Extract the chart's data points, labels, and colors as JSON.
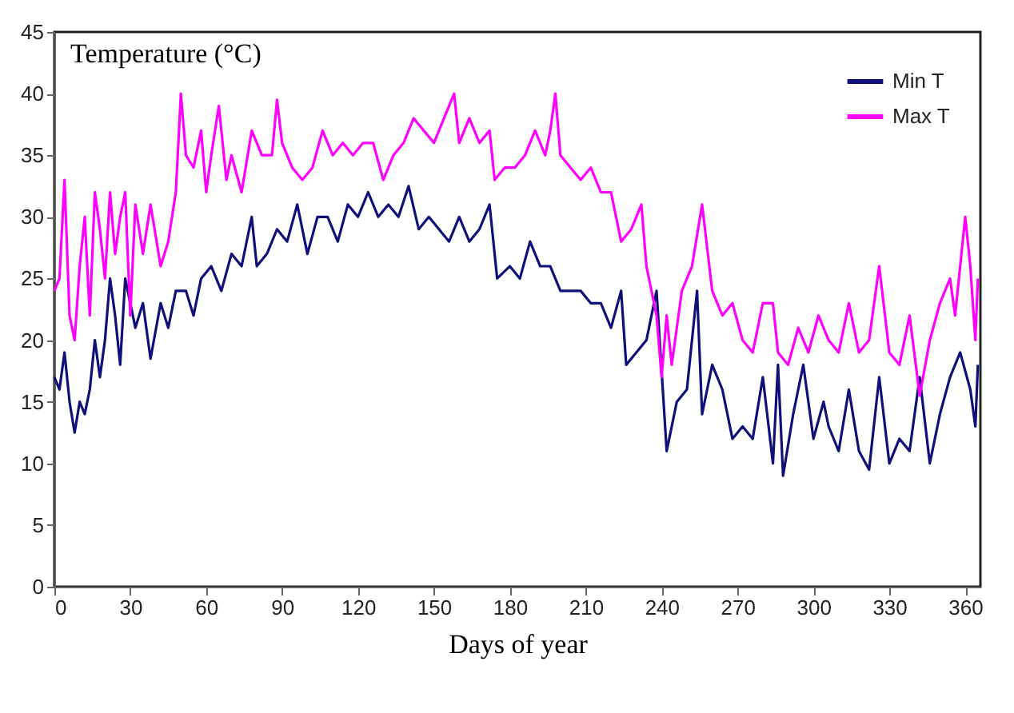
{
  "chart_data": {
    "type": "line",
    "xlabel": "Days of year",
    "ylabel": "Temperature (°C)",
    "xlim": [
      0,
      366
    ],
    "xticks": [
      0,
      30,
      60,
      90,
      120,
      150,
      180,
      210,
      240,
      270,
      300,
      330,
      360
    ],
    "ylim": [
      0,
      45
    ],
    "yticks": [
      0,
      5,
      10,
      15,
      20,
      25,
      30,
      35,
      40,
      45
    ],
    "grid": false,
    "legend": "top right",
    "line_style": "solid",
    "series": [
      {
        "name": "Min T",
        "color": "#10107a",
        "x": [
          0,
          2,
          4,
          6,
          8,
          10,
          12,
          14,
          16,
          18,
          20,
          22,
          24,
          26,
          28,
          32,
          35,
          38,
          42,
          45,
          48,
          52,
          55,
          58,
          62,
          66,
          70,
          74,
          78,
          80,
          84,
          88,
          92,
          96,
          100,
          104,
          108,
          112,
          116,
          120,
          124,
          128,
          132,
          136,
          140,
          144,
          148,
          152,
          156,
          160,
          164,
          168,
          172,
          175,
          180,
          184,
          188,
          192,
          196,
          200,
          204,
          208,
          212,
          216,
          220,
          224,
          226,
          230,
          234,
          238,
          242,
          246,
          250,
          254,
          256,
          260,
          264,
          268,
          272,
          276,
          280,
          284,
          286,
          288,
          292,
          296,
          300,
          304,
          306,
          310,
          314,
          318,
          322,
          326,
          330,
          334,
          338,
          342,
          346,
          350,
          354,
          358,
          362,
          364,
          365
        ],
        "values": [
          17,
          16,
          19,
          15,
          12.5,
          15,
          14,
          16,
          20,
          17,
          20,
          25,
          22,
          18,
          25,
          21,
          23,
          18.5,
          23,
          21,
          24,
          24,
          22,
          25,
          26,
          24,
          27,
          26,
          30,
          26,
          27,
          29,
          28,
          31,
          27,
          30,
          30,
          28,
          31,
          30,
          32,
          30,
          31,
          30,
          32.5,
          29,
          30,
          29,
          28,
          30,
          28,
          29,
          31,
          25,
          26,
          25,
          28,
          26,
          26,
          24,
          24,
          24,
          23,
          23,
          21,
          24,
          18,
          19,
          20,
          24,
          11,
          15,
          16,
          24,
          14,
          18,
          16,
          12,
          13,
          12,
          17,
          10,
          18,
          9,
          14,
          18,
          12,
          15,
          13,
          11,
          16,
          11,
          9.5,
          17,
          10,
          12,
          11,
          17,
          10,
          14,
          17,
          19,
          16,
          13,
          18
        ]
      },
      {
        "name": "Max T",
        "color": "#ff00ff",
        "x": [
          0,
          2,
          4,
          6,
          8,
          10,
          12,
          14,
          16,
          18,
          20,
          22,
          24,
          26,
          28,
          30,
          32,
          35,
          38,
          42,
          45,
          48,
          50,
          52,
          55,
          58,
          60,
          62,
          65,
          68,
          70,
          74,
          78,
          82,
          86,
          88,
          90,
          94,
          98,
          102,
          106,
          110,
          114,
          118,
          122,
          126,
          130,
          134,
          138,
          142,
          146,
          150,
          154,
          158,
          160,
          164,
          168,
          172,
          174,
          178,
          182,
          186,
          190,
          194,
          196,
          198,
          200,
          204,
          208,
          212,
          216,
          220,
          224,
          228,
          232,
          234,
          238,
          240,
          242,
          244,
          248,
          252,
          256,
          260,
          264,
          268,
          272,
          276,
          280,
          284,
          286,
          290,
          294,
          298,
          302,
          306,
          310,
          314,
          318,
          322,
          326,
          330,
          334,
          338,
          342,
          346,
          350,
          354,
          356,
          360,
          362,
          364,
          365
        ],
        "values": [
          24,
          25,
          33,
          22,
          20,
          26,
          30,
          22,
          32,
          29,
          25,
          32,
          27,
          30,
          32,
          22,
          31,
          27,
          31,
          26,
          28,
          32,
          40,
          35,
          34,
          37,
          32,
          35,
          39,
          33,
          35,
          32,
          37,
          35,
          35,
          39.5,
          36,
          34,
          33,
          34,
          37,
          35,
          36,
          35,
          36,
          36,
          33,
          35,
          36,
          38,
          37,
          36,
          38,
          40,
          36,
          38,
          36,
          37,
          33,
          34,
          34,
          35,
          37,
          35,
          37,
          40,
          35,
          34,
          33,
          34,
          32,
          32,
          28,
          29,
          31,
          26,
          22,
          17,
          22,
          18,
          24,
          26,
          31,
          24,
          22,
          23,
          20,
          19,
          23,
          23,
          19,
          18,
          21,
          19,
          22,
          20,
          19,
          23,
          19,
          20,
          26,
          19,
          18,
          22,
          15.5,
          20,
          23,
          25,
          22,
          30,
          26,
          20,
          25
        ]
      }
    ]
  }
}
